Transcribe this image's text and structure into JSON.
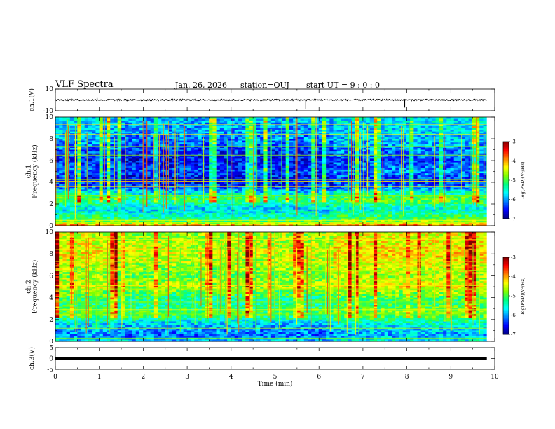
{
  "header": {
    "title": "VLF Spectra",
    "date": "Jan. 26, 2026",
    "station": "station=OUJ",
    "start_ut": "start UT =  9 : 0 : 0"
  },
  "colors": {
    "colormap": [
      "#00007f",
      "#0000ff",
      "#0080ff",
      "#00ffff",
      "#00ff80",
      "#80ff00",
      "#ffff00",
      "#ff8000",
      "#ff0000",
      "#800000"
    ],
    "axis": "#000000"
  },
  "chart_data": [
    {
      "type": "line",
      "panel": "ch1-waveform",
      "ylabel": "ch.1(V)",
      "ylim": [
        -10,
        10
      ],
      "yticks": [
        "10",
        "-10"
      ],
      "baseline": 0,
      "noise_amplitude": 0.8,
      "spikes": [
        {
          "t": 0.95,
          "v": 1.8
        },
        {
          "t": 5.7,
          "v": -8.5
        },
        {
          "t": 7.95,
          "v": -7.0
        }
      ]
    },
    {
      "type": "heatmap",
      "panel": "ch1-spectrogram",
      "ylabel": "ch.1\nFrequency (kHz)",
      "ylim": [
        0,
        10
      ],
      "yticks": [
        "0",
        "2",
        "4",
        "6",
        "8",
        "10"
      ],
      "xlim": [
        0,
        9.82
      ],
      "colorbar": {
        "label": "log(PSD)(V²/Hz)",
        "range": [
          -7,
          -3
        ],
        "ticks": [
          "-3",
          "-4",
          "-5",
          "-6",
          "-7"
        ]
      },
      "baseline_level_by_kHz": [
        [
          0,
          -4.0
        ],
        [
          0.5,
          -5.2
        ],
        [
          1.5,
          -5.8
        ],
        [
          2.5,
          -5.1
        ],
        [
          3.5,
          -6.3
        ],
        [
          4.2,
          -6.7
        ],
        [
          5.0,
          -6.3
        ],
        [
          6.0,
          -6.6
        ],
        [
          8.0,
          -6.1
        ],
        [
          10,
          -5.9
        ]
      ],
      "bright_lines_kHz": [
        0.3,
        0.5,
        2.8,
        3.6,
        4.1,
        4.25,
        6.5,
        7.3,
        8.4,
        9.3
      ],
      "segment_breaks_min": [
        1.4,
        6.35
      ]
    },
    {
      "type": "heatmap",
      "panel": "ch2-spectrogram",
      "ylabel": "ch.2\nFrequency (kHz)",
      "ylim": [
        0,
        10
      ],
      "yticks": [
        "0",
        "2",
        "4",
        "6",
        "8",
        "10"
      ],
      "xlim": [
        0,
        9.82
      ],
      "colorbar": {
        "label": "log(PSD)(V²/Hz)",
        "range": [
          -7,
          -3
        ],
        "ticks": [
          "-3",
          "-4",
          "-5",
          "-6",
          "-7"
        ]
      },
      "baseline_level_by_kHz": [
        [
          0,
          -5.8
        ],
        [
          0.5,
          -6.2
        ],
        [
          1.5,
          -5.9
        ],
        [
          2.5,
          -5.0
        ],
        [
          3.5,
          -5.4
        ],
        [
          4.5,
          -5.0
        ],
        [
          5.0,
          -4.6
        ],
        [
          6.0,
          -4.9
        ],
        [
          8.0,
          -4.5
        ],
        [
          10,
          -4.7
        ]
      ],
      "bright_lines_kHz": [
        0.3,
        1.2,
        2.5,
        2.9,
        3.6,
        4.8,
        5.1,
        6.5,
        7.3,
        8.4,
        9.3
      ],
      "segment_breaks_min": [
        1.4,
        6.35
      ]
    },
    {
      "type": "line",
      "panel": "ch3-waveform",
      "ylabel": "ch.3(V)",
      "ylim": [
        -5,
        5
      ],
      "yticks": [
        "5",
        "0",
        "-5"
      ],
      "baseline": 0,
      "noise_amplitude": 0.15
    }
  ],
  "xaxis": {
    "label": "Time (min)",
    "xlim": [
      0,
      10
    ],
    "ticks": [
      "0",
      "1",
      "2",
      "3",
      "4",
      "5",
      "6",
      "7",
      "8",
      "9",
      "10"
    ]
  }
}
